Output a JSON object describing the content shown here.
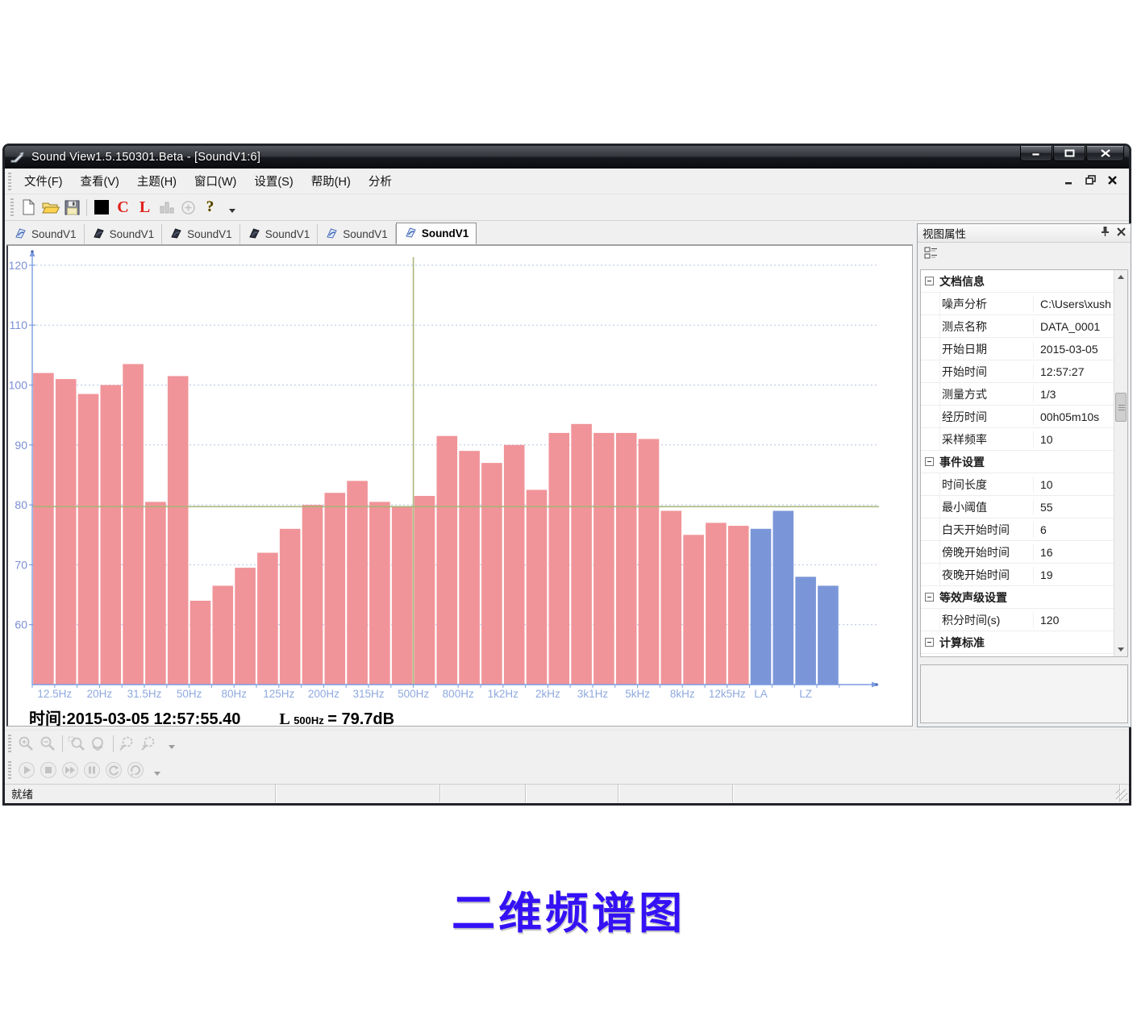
{
  "window": {
    "title": "Sound View1.5.150301.Beta - [SoundV1:6]",
    "caption_buttons": [
      "minimize",
      "maximize",
      "close"
    ]
  },
  "menu_bar": {
    "items": [
      "文件(F)",
      "查看(V)",
      "主题(H)",
      "窗口(W)",
      "设置(S)",
      "帮助(H)",
      "分析"
    ],
    "mdi_buttons": [
      "minimize",
      "restore",
      "close"
    ]
  },
  "main_toolbar": {
    "items": [
      {
        "name": "new-document"
      },
      {
        "name": "open-folder"
      },
      {
        "name": "save"
      },
      {
        "name": "separator"
      },
      {
        "name": "color-swatch"
      },
      {
        "name": "letter-c",
        "label": "C"
      },
      {
        "name": "letter-l",
        "label": "L"
      },
      {
        "name": "histogram",
        "disabled": true
      },
      {
        "name": "circle-plus",
        "disabled": true
      },
      {
        "name": "help",
        "label": "?"
      },
      {
        "name": "dropdown-arrow"
      }
    ]
  },
  "tab_bar": {
    "tabs": [
      {
        "label": "SoundV1",
        "icon": "chart-blue"
      },
      {
        "label": "SoundV1",
        "icon": "chart-dark"
      },
      {
        "label": "SoundV1",
        "icon": "chart-dark"
      },
      {
        "label": "SoundV1",
        "icon": "chart-dark"
      },
      {
        "label": "SoundV1",
        "icon": "chart-blue"
      },
      {
        "label": "SoundV1",
        "icon": "chart-blue"
      }
    ],
    "active_index": 5,
    "nav_buttons": [
      "prev",
      "next",
      "close"
    ]
  },
  "chart": {
    "time_text": "时间:2015-03-05 12:57:55.40",
    "cursor_readout": {
      "symbol": "L",
      "frequency": "500Hz",
      "equals_value": "= 79.7dB"
    }
  },
  "chart_data": {
    "type": "bar",
    "ylabel_unit": "dB",
    "ylim": [
      50,
      122
    ],
    "y_ticks": [
      120,
      110,
      100,
      90,
      80,
      70,
      60
    ],
    "grid": true,
    "series": [
      {
        "name": "1/3-octave-band-spectrum",
        "color": "#f09499",
        "values": [
          102,
          101,
          98.5,
          100,
          103.5,
          80.5,
          101.5,
          64,
          66.5,
          69.5,
          72,
          76,
          80,
          82,
          84,
          80.5,
          79.7,
          81.5,
          91.5,
          89,
          87,
          90,
          82.5,
          92,
          93.5,
          92,
          92,
          91,
          79,
          75,
          77,
          76.5
        ]
      },
      {
        "name": "overall-levels",
        "color": "#7b96d8",
        "values": [
          76,
          79,
          68,
          66.5
        ]
      }
    ],
    "x_tick_labels": [
      {
        "text": "12.5Hz",
        "bar": 0
      },
      {
        "text": "20Hz",
        "bar": 2
      },
      {
        "text": "31.5Hz",
        "bar": 4
      },
      {
        "text": "50Hz",
        "bar": 6
      },
      {
        "text": "80Hz",
        "bar": 8
      },
      {
        "text": "125Hz",
        "bar": 10
      },
      {
        "text": "200Hz",
        "bar": 12
      },
      {
        "text": "315Hz",
        "bar": 14
      },
      {
        "text": "500Hz",
        "bar": 16
      },
      {
        "text": "800Hz",
        "bar": 18
      },
      {
        "text": "1k2Hz",
        "bar": 20
      },
      {
        "text": "2kHz",
        "bar": 22
      },
      {
        "text": "3k1Hz",
        "bar": 24
      },
      {
        "text": "5kHz",
        "bar": 26
      },
      {
        "text": "8kHz",
        "bar": 28
      },
      {
        "text": "12k5Hz",
        "bar": 30
      },
      {
        "text": "LA",
        "bar": 32
      },
      {
        "text": "LZ",
        "bar": 34
      }
    ],
    "cursor": {
      "bar_label": "500Hz",
      "value_db": 79.7,
      "color": "#a6b574"
    },
    "axis_color": "#7b9ce0",
    "grid_color": "#b3c3e6",
    "y_label_color": "#7b8fd6",
    "x_label_color": "#8ea9de"
  },
  "properties_panel": {
    "title": "视图属性",
    "rows": [
      {
        "type": "group",
        "label": "文档信息"
      },
      {
        "type": "item",
        "name": "噪声分析",
        "value": "C:\\Users\\xush"
      },
      {
        "type": "item",
        "name": "测点名称",
        "value": "DATA_0001"
      },
      {
        "type": "item",
        "name": "开始日期",
        "value": "2015-03-05"
      },
      {
        "type": "item",
        "name": "开始时间",
        "value": "12:57:27"
      },
      {
        "type": "item",
        "name": "测量方式",
        "value": "1/3"
      },
      {
        "type": "item",
        "name": "经历时间",
        "value": "00h05m10s"
      },
      {
        "type": "item",
        "name": "采样频率",
        "value": "10"
      },
      {
        "type": "group",
        "label": "事件设置"
      },
      {
        "type": "item",
        "name": "时间长度",
        "value": "10"
      },
      {
        "type": "item",
        "name": "最小阈值",
        "value": "55"
      },
      {
        "type": "item",
        "name": "白天开始时间",
        "value": "6"
      },
      {
        "type": "item",
        "name": "傍晚开始时间",
        "value": "16"
      },
      {
        "type": "item",
        "name": "夜晚开始时间",
        "value": "19"
      },
      {
        "type": "group",
        "label": "等效声级设置"
      },
      {
        "type": "item",
        "name": "积分时间(s)",
        "value": "120"
      },
      {
        "type": "group",
        "label": "计算标准"
      }
    ]
  },
  "zoom_toolbar": {
    "disabled": true,
    "items": [
      {
        "name": "zoom-in"
      },
      {
        "name": "zoom-out"
      },
      {
        "name": "separator"
      },
      {
        "name": "zoom-window"
      },
      {
        "name": "zoom-reset"
      },
      {
        "name": "separator"
      },
      {
        "name": "scale-zoom-out"
      },
      {
        "name": "scale-zoom-in"
      },
      {
        "name": "dropdown-arrow"
      }
    ]
  },
  "transport_toolbar": {
    "disabled": true,
    "items": [
      {
        "name": "play"
      },
      {
        "name": "stop"
      },
      {
        "name": "fast-forward"
      },
      {
        "name": "pause"
      },
      {
        "name": "refresh"
      },
      {
        "name": "rotate"
      },
      {
        "name": "dropdown-arrow"
      }
    ]
  },
  "status_bar": {
    "panels": [
      "就绪",
      "",
      "",
      "",
      "",
      ""
    ]
  },
  "page_title": "二维频谱图"
}
